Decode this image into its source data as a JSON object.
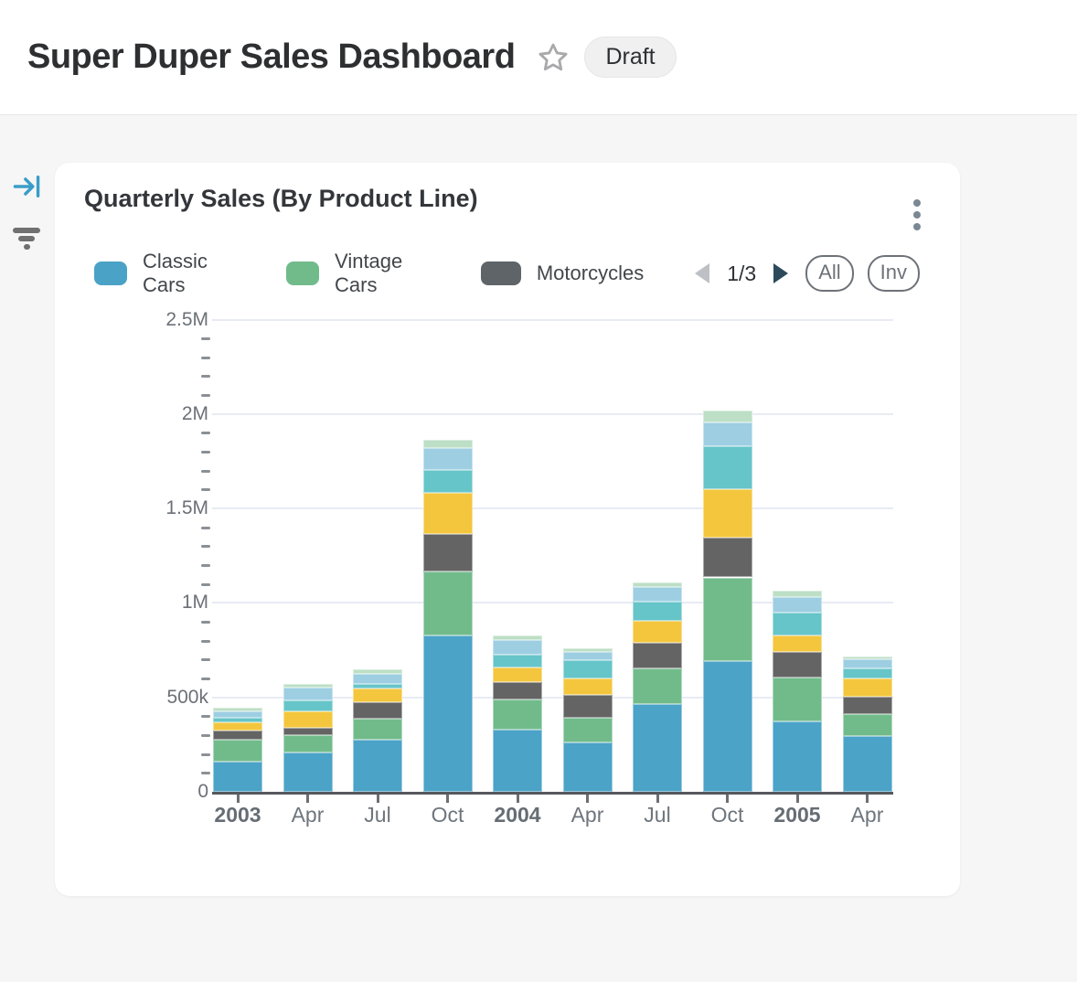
{
  "header": {
    "title": "Super Duper Sales Dashboard",
    "badge": "Draft"
  },
  "sidebar": {
    "icons": [
      "collapse-panel",
      "filter"
    ]
  },
  "card": {
    "title": "Quarterly Sales (By Product Line)",
    "legend": {
      "items": [
        {
          "label": "Classic Cars",
          "color": "#4AA2C6"
        },
        {
          "label": "Vintage Cars",
          "color": "#71BB8B"
        },
        {
          "label": "Motorcycles",
          "color": "#5F6468"
        }
      ],
      "pagination": {
        "label": "1/3",
        "prev_enabled": false,
        "next_enabled": true
      },
      "buttons": [
        {
          "label": "All"
        },
        {
          "label": "Inv"
        }
      ]
    }
  },
  "chart_data": {
    "type": "bar",
    "stacked": true,
    "title": "Quarterly Sales (By Product Line)",
    "categories": [
      "2003",
      "Apr",
      "Jul",
      "Oct",
      "2004",
      "Apr",
      "Jul",
      "Oct",
      "2005",
      "Apr"
    ],
    "category_bold": [
      true,
      false,
      false,
      false,
      true,
      false,
      false,
      false,
      true,
      false
    ],
    "series": [
      {
        "name": "Classic Cars",
        "name_visible": true,
        "color": "#4BA3C7",
        "values": [
          160000,
          207000,
          274000,
          826000,
          329000,
          260000,
          466000,
          691000,
          371000,
          294000
        ]
      },
      {
        "name": "Vintage Cars",
        "name_visible": true,
        "color": "#71BB8B",
        "values": [
          118000,
          93000,
          113000,
          339000,
          161000,
          134000,
          186000,
          444000,
          234000,
          118000
        ]
      },
      {
        "name": "Motorcycles",
        "name_visible": true,
        "color": "#646464",
        "values": [
          45000,
          41000,
          89000,
          198000,
          92000,
          118000,
          136000,
          210000,
          134000,
          92000
        ]
      },
      {
        "name": "",
        "name_visible": false,
        "color": "#F3C63E",
        "values": [
          47000,
          84000,
          73000,
          221000,
          74000,
          87000,
          118000,
          257000,
          87000,
          94000
        ]
      },
      {
        "name": "",
        "name_visible": false,
        "color": "#66C5C8",
        "values": [
          21000,
          57000,
          22000,
          122000,
          71000,
          97000,
          102000,
          226000,
          122000,
          56000
        ]
      },
      {
        "name": "",
        "name_visible": false,
        "color": "#9DCEE2",
        "values": [
          37000,
          68000,
          55000,
          116000,
          76000,
          45000,
          76000,
          129000,
          84000,
          48000
        ]
      },
      {
        "name": "",
        "name_visible": false,
        "color": "#BCDFC5",
        "values": [
          18000,
          21000,
          22000,
          40000,
          27000,
          19000,
          24000,
          61000,
          35000,
          16000
        ]
      }
    ],
    "y_ticks": [
      {
        "label": "2.5M",
        "value": 2500000
      },
      {
        "label": "2M",
        "value": 2000000
      },
      {
        "label": "1.5M",
        "value": 1500000
      },
      {
        "label": "1M",
        "value": 1000000
      },
      {
        "label": "500k",
        "value": 500000
      },
      {
        "label": "0",
        "value": 0
      }
    ],
    "ylim": [
      0,
      2500000
    ],
    "minor_tick_interval": 100000,
    "grid": "horizontal-major",
    "legend_position": "top",
    "legend_page": "1/3"
  },
  "colors": {
    "page_background": "#F6F6F7",
    "card_background": "#FFFFFF",
    "gridline": "#E8EBF4",
    "axis_line": "#55585D",
    "accent_blue": "#3B9DC8",
    "next_arrow": "#2D4A5D",
    "prev_arrow_disabled": "#BDC0C4"
  }
}
